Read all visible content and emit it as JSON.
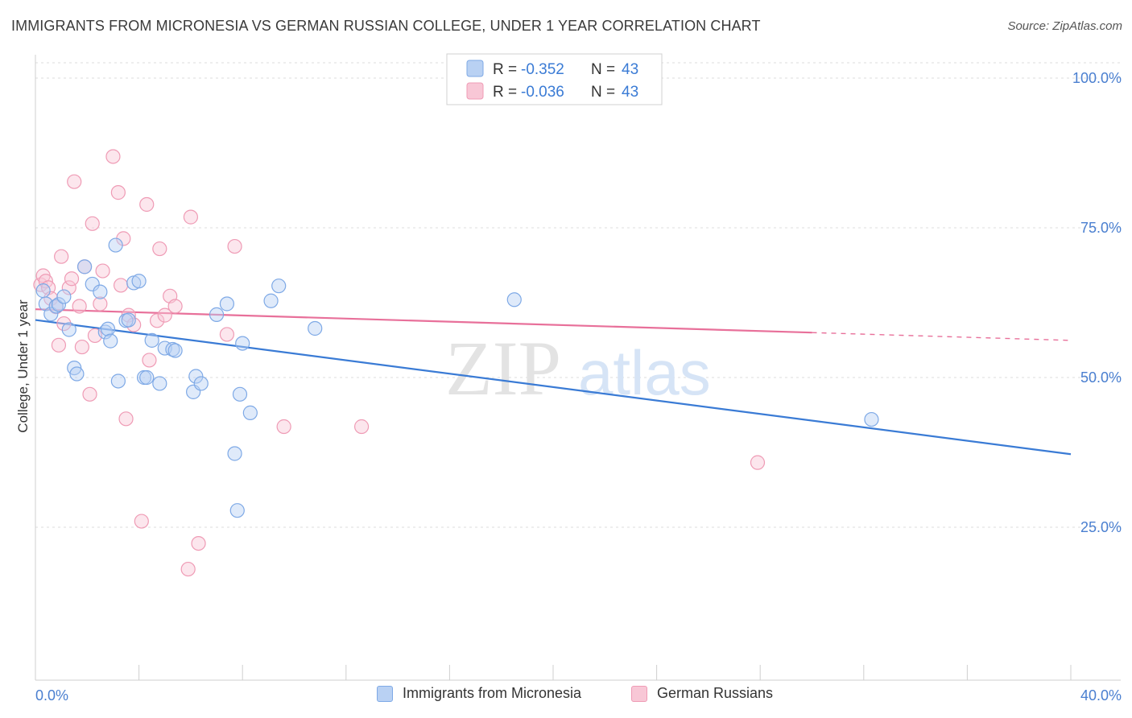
{
  "header": {
    "title": "IMMIGRANTS FROM MICRONESIA VS GERMAN RUSSIAN COLLEGE, UNDER 1 YEAR CORRELATION CHART",
    "source": "Source: ZipAtlas.com"
  },
  "watermark": {
    "zip": "ZIP",
    "atlas": "atlas"
  },
  "legend": {
    "rows": [
      {
        "r_label": "R =",
        "r_value": "-0.352",
        "n_label": "N =",
        "n_value": "43"
      },
      {
        "r_label": "R =",
        "r_value": "-0.036",
        "n_label": "N =",
        "n_value": "43"
      }
    ]
  },
  "bottom_legend": {
    "blue_label": "Immigrants from Micronesia",
    "pink_label": "German Russians"
  },
  "chart_data": {
    "type": "scatter",
    "title": "IMMIGRANTS FROM MICRONESIA VS GERMAN RUSSIAN COLLEGE, UNDER 1 YEAR CORRELATION CHART",
    "xlabel": "",
    "ylabel": "College, Under 1 year",
    "xlim": [
      0,
      40
    ],
    "ylim": [
      3,
      105
    ],
    "x_tick_labels": [
      "0.0%",
      "40.0%"
    ],
    "y_ticks": [
      25,
      50,
      75,
      100
    ],
    "y_tick_labels": [
      "25.0%",
      "50.0%",
      "75.0%",
      "100.0%"
    ],
    "grid": true,
    "legend_position": "top-center",
    "colors": {
      "blue": "#3a7bd5",
      "pink": "#e8709a",
      "tick_label": "#4a7fd0"
    },
    "series": [
      {
        "name": "Immigrants from Micronesia",
        "color": "#3a7bd5",
        "trend": {
          "x": [
            0,
            40
          ],
          "y": [
            59.6,
            37.2
          ]
        },
        "x": [
          0.3,
          0.4,
          0.6,
          0.8,
          0.9,
          1.1,
          1.3,
          1.5,
          1.6,
          1.9,
          2.2,
          2.5,
          2.7,
          2.8,
          2.9,
          3.1,
          3.2,
          3.5,
          3.6,
          3.8,
          4.0,
          4.2,
          4.3,
          4.5,
          4.8,
          5.0,
          5.3,
          5.4,
          6.1,
          6.2,
          6.4,
          7.0,
          7.4,
          7.7,
          7.8,
          7.9,
          8.0,
          8.3,
          9.1,
          9.4,
          10.8,
          18.5,
          32.3
        ],
        "y": [
          64.5,
          62.3,
          60.6,
          61.9,
          62.2,
          63.5,
          58.0,
          51.6,
          50.6,
          68.5,
          65.6,
          64.3,
          57.6,
          58.1,
          56.1,
          72.1,
          49.4,
          59.5,
          59.6,
          65.8,
          66.1,
          50.0,
          50.0,
          56.2,
          49.0,
          54.9,
          54.7,
          54.5,
          47.6,
          50.2,
          49.0,
          60.5,
          62.3,
          37.3,
          27.8,
          47.2,
          55.7,
          44.1,
          62.8,
          65.3,
          58.2,
          63.0,
          43.0
        ]
      },
      {
        "name": "German Russians",
        "color": "#e8709a",
        "trend": {
          "x": [
            0,
            30
          ],
          "y": [
            61.4,
            57.5
          ]
        },
        "trend_dashed": {
          "x": [
            30,
            40
          ],
          "y": [
            57.5,
            56.2
          ]
        },
        "x": [
          0.2,
          0.3,
          0.4,
          0.5,
          0.6,
          0.8,
          0.9,
          1.0,
          1.1,
          1.3,
          1.4,
          1.5,
          1.7,
          1.8,
          1.9,
          2.1,
          2.2,
          2.3,
          2.5,
          2.6,
          3.0,
          3.2,
          3.3,
          3.4,
          3.5,
          3.6,
          3.8,
          4.1,
          4.3,
          4.4,
          4.7,
          4.8,
          5.0,
          5.2,
          5.4,
          5.9,
          6.0,
          6.3,
          7.4,
          7.7,
          9.6,
          12.6,
          27.9
        ],
        "y": [
          65.5,
          67.0,
          66.1,
          65.0,
          63.2,
          61.8,
          55.4,
          70.2,
          59.0,
          65.0,
          66.5,
          82.7,
          61.9,
          55.1,
          68.5,
          47.2,
          75.7,
          57.0,
          62.3,
          67.8,
          86.9,
          80.9,
          65.4,
          73.2,
          43.1,
          60.4,
          58.8,
          26.0,
          78.9,
          52.9,
          59.5,
          71.5,
          60.4,
          63.6,
          61.9,
          18.0,
          76.8,
          22.3,
          57.2,
          71.9,
          41.8,
          41.8,
          35.8
        ]
      }
    ]
  }
}
